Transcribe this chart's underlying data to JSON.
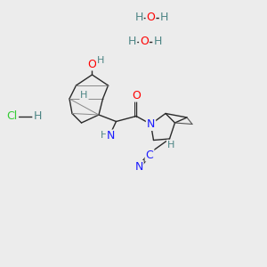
{
  "background_color": "#ececec",
  "fig_size": [
    3.0,
    3.0
  ],
  "dpi": 100,
  "atom_colors": {
    "O": "#ff0000",
    "N": "#1a1aff",
    "C": "#1a1aff",
    "H": "#4d8585",
    "Cl": "#33cc33",
    "bond": "#2a2a2a"
  },
  "water1": {
    "H1x": 0.52,
    "H1y": 0.935,
    "Ox": 0.565,
    "Oy": 0.935,
    "H2x": 0.615,
    "H2y": 0.935
  },
  "water2": {
    "H1x": 0.495,
    "H1y": 0.845,
    "Ox": 0.54,
    "Oy": 0.845,
    "H2x": 0.59,
    "H2y": 0.845
  },
  "hcl": {
    "Clx": 0.045,
    "Cly": 0.565,
    "Hx": 0.14,
    "Hy": 0.565
  }
}
